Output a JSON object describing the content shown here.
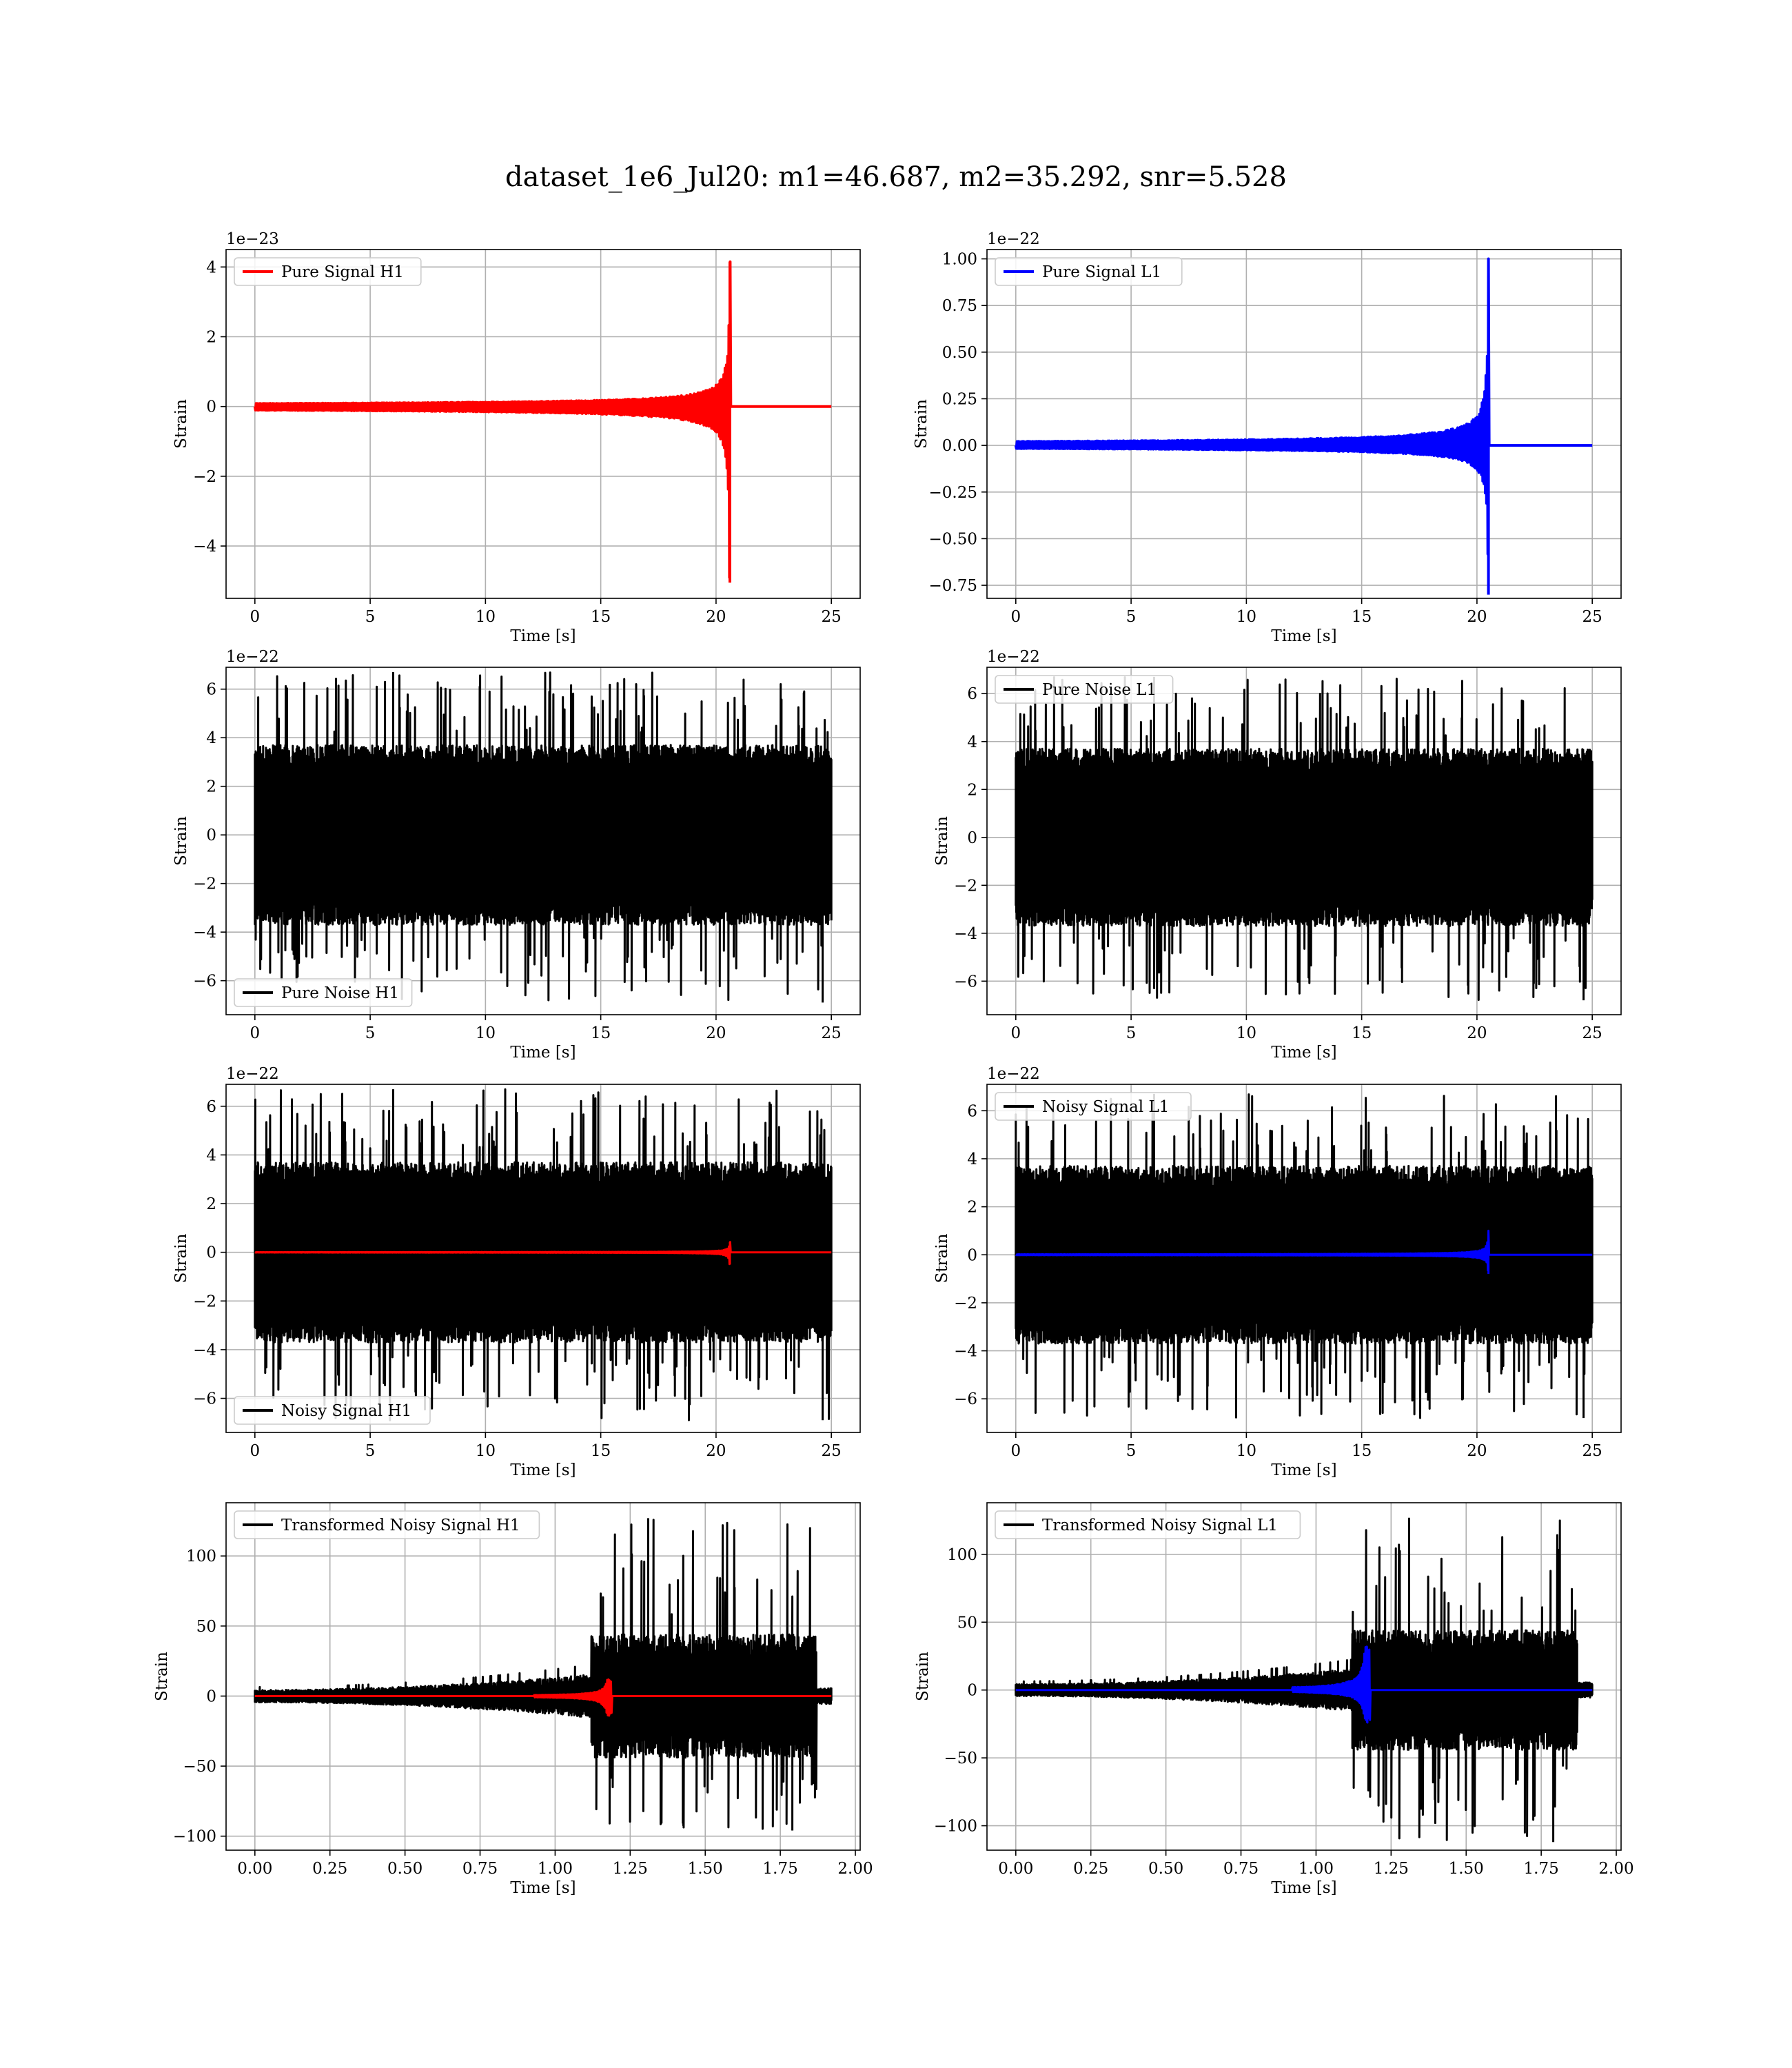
{
  "figure": {
    "title": "dataset_1e6_Jul20: m1=46.687, m2=35.292, snr=5.528"
  },
  "colors": {
    "h1_signal": "#ff0000",
    "l1_signal": "#0000ff",
    "noise": "#000000"
  },
  "chart_data": [
    {
      "id": "pure-signal-h1",
      "type": "line",
      "title": "",
      "xlabel": "Time [s]",
      "ylabel": "Strain",
      "offset_text": "1e−23",
      "xlim": [
        -1.25,
        26.25
      ],
      "ylim": [
        -5.5,
        4.5
      ],
      "xticks": [
        0,
        5,
        10,
        15,
        20,
        25
      ],
      "xtick_labels": [
        "0",
        "5",
        "10",
        "15",
        "20",
        "25"
      ],
      "yticks": [
        -4,
        -2,
        0,
        2,
        4
      ],
      "ytick_labels": [
        "−4",
        "−2",
        "0",
        "2",
        "4"
      ],
      "grid": true,
      "legend_position": "upper-left",
      "series": [
        {
          "name": "Pure Signal H1",
          "color": "#ff0000",
          "kind": "chirp",
          "t_start": 0,
          "t_end": 25,
          "t_merge": 20.6,
          "amp_max": 4.15,
          "amp_min": -5.05
        }
      ]
    },
    {
      "id": "pure-signal-l1",
      "type": "line",
      "title": "",
      "xlabel": "Time [s]",
      "ylabel": "Strain",
      "offset_text": "1e−22",
      "xlim": [
        -1.25,
        26.25
      ],
      "ylim": [
        -0.82,
        1.05
      ],
      "xticks": [
        0,
        5,
        10,
        15,
        20,
        25
      ],
      "xtick_labels": [
        "0",
        "5",
        "10",
        "15",
        "20",
        "25"
      ],
      "yticks": [
        -0.75,
        -0.5,
        -0.25,
        0,
        0.25,
        0.5,
        0.75,
        1.0
      ],
      "ytick_labels": [
        "−0.75",
        "−0.50",
        "−0.25",
        "0.00",
        "0.25",
        "0.50",
        "0.75",
        "1.00"
      ],
      "grid": true,
      "legend_position": "upper-left",
      "series": [
        {
          "name": "Pure Signal L1",
          "color": "#0000ff",
          "kind": "chirp",
          "t_start": 0,
          "t_end": 25,
          "t_merge": 20.5,
          "amp_max": 1.0,
          "amp_min": -0.8
        }
      ]
    },
    {
      "id": "pure-noise-h1",
      "type": "line",
      "title": "",
      "xlabel": "Time [s]",
      "ylabel": "Strain",
      "offset_text": "1e−22",
      "xlim": [
        -1.25,
        26.25
      ],
      "ylim": [
        -7.4,
        6.9
      ],
      "xticks": [
        0,
        5,
        10,
        15,
        20,
        25
      ],
      "xtick_labels": [
        "0",
        "5",
        "10",
        "15",
        "20",
        "25"
      ],
      "yticks": [
        -6,
        -4,
        -2,
        0,
        2,
        4,
        6
      ],
      "ytick_labels": [
        "−6",
        "−4",
        "−2",
        "0",
        "2",
        "4",
        "6"
      ],
      "grid": true,
      "legend_position": "lower-left",
      "series": [
        {
          "name": "Pure Noise H1",
          "color": "#000000",
          "kind": "noise",
          "t_start": 0,
          "t_end": 25,
          "amp_max": 6.7,
          "amp_min": -6.9
        }
      ]
    },
    {
      "id": "pure-noise-l1",
      "type": "line",
      "title": "",
      "xlabel": "Time [s]",
      "ylabel": "Strain",
      "offset_text": "1e−22",
      "xlim": [
        -1.25,
        26.25
      ],
      "ylim": [
        -7.4,
        7.1
      ],
      "xticks": [
        0,
        5,
        10,
        15,
        20,
        25
      ],
      "xtick_labels": [
        "0",
        "5",
        "10",
        "15",
        "20",
        "25"
      ],
      "yticks": [
        -6,
        -4,
        -2,
        0,
        2,
        4,
        6
      ],
      "ytick_labels": [
        "−6",
        "−4",
        "−2",
        "0",
        "2",
        "4",
        "6"
      ],
      "grid": true,
      "legend_position": "upper-left",
      "series": [
        {
          "name": "Pure Noise L1",
          "color": "#000000",
          "kind": "noise",
          "t_start": 0,
          "t_end": 25,
          "amp_max": 6.7,
          "amp_min": -6.8
        }
      ]
    },
    {
      "id": "noisy-signal-h1",
      "type": "line",
      "title": "",
      "xlabel": "Time [s]",
      "ylabel": "Strain",
      "offset_text": "1e−22",
      "xlim": [
        -1.25,
        26.25
      ],
      "ylim": [
        -7.4,
        6.9
      ],
      "xticks": [
        0,
        5,
        10,
        15,
        20,
        25
      ],
      "xtick_labels": [
        "0",
        "5",
        "10",
        "15",
        "20",
        "25"
      ],
      "yticks": [
        -6,
        -4,
        -2,
        0,
        2,
        4,
        6
      ],
      "ytick_labels": [
        "−6",
        "−4",
        "−2",
        "0",
        "2",
        "4",
        "6"
      ],
      "grid": true,
      "legend_position": "lower-left",
      "series": [
        {
          "name": "Noisy Signal H1",
          "color": "#000000",
          "kind": "noise",
          "t_start": 0,
          "t_end": 25,
          "amp_max": 6.7,
          "amp_min": -6.9
        },
        {
          "color": "#ff0000",
          "kind": "chirp",
          "t_start": 0,
          "t_end": 25,
          "t_merge": 20.6,
          "amp_max": 0.42,
          "amp_min": -0.5
        }
      ]
    },
    {
      "id": "noisy-signal-l1",
      "type": "line",
      "title": "",
      "xlabel": "Time [s]",
      "ylabel": "Strain",
      "offset_text": "1e−22",
      "xlim": [
        -1.25,
        26.25
      ],
      "ylim": [
        -7.4,
        7.1
      ],
      "xticks": [
        0,
        5,
        10,
        15,
        20,
        25
      ],
      "xtick_labels": [
        "0",
        "5",
        "10",
        "15",
        "20",
        "25"
      ],
      "yticks": [
        -6,
        -4,
        -2,
        0,
        2,
        4,
        6
      ],
      "ytick_labels": [
        "−6",
        "−4",
        "−2",
        "0",
        "2",
        "4",
        "6"
      ],
      "grid": true,
      "legend_position": "upper-left",
      "series": [
        {
          "name": "Noisy Signal L1",
          "color": "#000000",
          "kind": "noise",
          "t_start": 0,
          "t_end": 25,
          "amp_max": 6.7,
          "amp_min": -6.8
        },
        {
          "color": "#0000ff",
          "kind": "chirp",
          "t_start": 0,
          "t_end": 25,
          "t_merge": 20.5,
          "amp_max": 1.0,
          "amp_min": -0.8
        }
      ]
    },
    {
      "id": "transformed-h1",
      "type": "line",
      "title": "",
      "xlabel": "Time [s]",
      "ylabel": "Strain",
      "offset_text": "",
      "xlim": [
        -0.096,
        2.016
      ],
      "ylim": [
        -110,
        138
      ],
      "xticks": [
        0,
        0.25,
        0.5,
        0.75,
        1.0,
        1.25,
        1.5,
        1.75,
        2.0
      ],
      "xtick_labels": [
        "0.00",
        "0.25",
        "0.50",
        "0.75",
        "1.00",
        "1.25",
        "1.50",
        "1.75",
        "2.00"
      ],
      "yticks": [
        -100,
        -50,
        0,
        50,
        100
      ],
      "ytick_labels": [
        "−100",
        "−50",
        "0",
        "50",
        "100"
      ],
      "grid": true,
      "legend_position": "upper-left",
      "series": [
        {
          "name": "Transformed Noisy Signal H1",
          "color": "#000000",
          "kind": "transformed",
          "t_start": 0,
          "t_end": 1.92,
          "t_rise": 1.12,
          "t_stop": 1.87,
          "amp_max": 127,
          "amp_min": -96
        },
        {
          "color": "#ff0000",
          "kind": "tchirp",
          "t_start": 0,
          "t_end": 1.92,
          "t_merge": 1.18,
          "amp_max": 12,
          "amp_min": -14
        }
      ]
    },
    {
      "id": "transformed-l1",
      "type": "line",
      "title": "",
      "xlabel": "Time [s]",
      "ylabel": "Strain",
      "offset_text": "",
      "xlim": [
        -0.096,
        2.016
      ],
      "ylim": [
        -118,
        138
      ],
      "xticks": [
        0,
        0.25,
        0.5,
        0.75,
        1.0,
        1.25,
        1.5,
        1.75,
        2.0
      ],
      "xtick_labels": [
        "0.00",
        "0.25",
        "0.50",
        "0.75",
        "1.00",
        "1.25",
        "1.50",
        "1.75",
        "2.00"
      ],
      "yticks": [
        -100,
        -50,
        0,
        50,
        100
      ],
      "ytick_labels": [
        "−100",
        "−50",
        "0",
        "50",
        "100"
      ],
      "grid": true,
      "legend_position": "upper-left",
      "series": [
        {
          "name": "Transformed Noisy Signal L1",
          "color": "#000000",
          "kind": "transformed",
          "t_start": 0,
          "t_end": 1.92,
          "t_rise": 1.12,
          "t_stop": 1.87,
          "amp_max": 127,
          "amp_min": -112
        },
        {
          "color": "#0000ff",
          "kind": "tchirp",
          "t_start": 0,
          "t_end": 1.92,
          "t_merge": 1.17,
          "amp_max": 32,
          "amp_min": -24
        }
      ]
    }
  ]
}
